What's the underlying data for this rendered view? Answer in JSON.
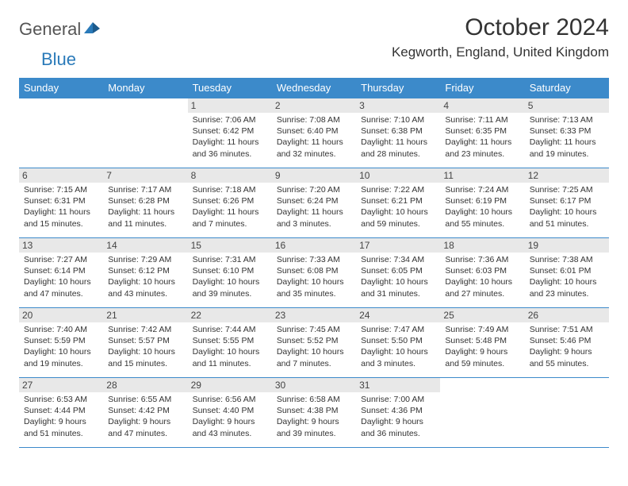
{
  "logo": {
    "text1": "General",
    "text2": "Blue"
  },
  "title": "October 2024",
  "location": "Kegworth, England, United Kingdom",
  "colors": {
    "header_bg": "#3c8aca",
    "header_text": "#ffffff",
    "daynum_bg": "#e8e8e8",
    "border": "#3c8aca",
    "logo_gray": "#555555",
    "logo_blue": "#2a7ab9"
  },
  "weekdays": [
    "Sunday",
    "Monday",
    "Tuesday",
    "Wednesday",
    "Thursday",
    "Friday",
    "Saturday"
  ],
  "weeks": [
    [
      null,
      null,
      {
        "n": "1",
        "sr": "7:06 AM",
        "ss": "6:42 PM",
        "dl": "11 hours and 36 minutes."
      },
      {
        "n": "2",
        "sr": "7:08 AM",
        "ss": "6:40 PM",
        "dl": "11 hours and 32 minutes."
      },
      {
        "n": "3",
        "sr": "7:10 AM",
        "ss": "6:38 PM",
        "dl": "11 hours and 28 minutes."
      },
      {
        "n": "4",
        "sr": "7:11 AM",
        "ss": "6:35 PM",
        "dl": "11 hours and 23 minutes."
      },
      {
        "n": "5",
        "sr": "7:13 AM",
        "ss": "6:33 PM",
        "dl": "11 hours and 19 minutes."
      }
    ],
    [
      {
        "n": "6",
        "sr": "7:15 AM",
        "ss": "6:31 PM",
        "dl": "11 hours and 15 minutes."
      },
      {
        "n": "7",
        "sr": "7:17 AM",
        "ss": "6:28 PM",
        "dl": "11 hours and 11 minutes."
      },
      {
        "n": "8",
        "sr": "7:18 AM",
        "ss": "6:26 PM",
        "dl": "11 hours and 7 minutes."
      },
      {
        "n": "9",
        "sr": "7:20 AM",
        "ss": "6:24 PM",
        "dl": "11 hours and 3 minutes."
      },
      {
        "n": "10",
        "sr": "7:22 AM",
        "ss": "6:21 PM",
        "dl": "10 hours and 59 minutes."
      },
      {
        "n": "11",
        "sr": "7:24 AM",
        "ss": "6:19 PM",
        "dl": "10 hours and 55 minutes."
      },
      {
        "n": "12",
        "sr": "7:25 AM",
        "ss": "6:17 PM",
        "dl": "10 hours and 51 minutes."
      }
    ],
    [
      {
        "n": "13",
        "sr": "7:27 AM",
        "ss": "6:14 PM",
        "dl": "10 hours and 47 minutes."
      },
      {
        "n": "14",
        "sr": "7:29 AM",
        "ss": "6:12 PM",
        "dl": "10 hours and 43 minutes."
      },
      {
        "n": "15",
        "sr": "7:31 AM",
        "ss": "6:10 PM",
        "dl": "10 hours and 39 minutes."
      },
      {
        "n": "16",
        "sr": "7:33 AM",
        "ss": "6:08 PM",
        "dl": "10 hours and 35 minutes."
      },
      {
        "n": "17",
        "sr": "7:34 AM",
        "ss": "6:05 PM",
        "dl": "10 hours and 31 minutes."
      },
      {
        "n": "18",
        "sr": "7:36 AM",
        "ss": "6:03 PM",
        "dl": "10 hours and 27 minutes."
      },
      {
        "n": "19",
        "sr": "7:38 AM",
        "ss": "6:01 PM",
        "dl": "10 hours and 23 minutes."
      }
    ],
    [
      {
        "n": "20",
        "sr": "7:40 AM",
        "ss": "5:59 PM",
        "dl": "10 hours and 19 minutes."
      },
      {
        "n": "21",
        "sr": "7:42 AM",
        "ss": "5:57 PM",
        "dl": "10 hours and 15 minutes."
      },
      {
        "n": "22",
        "sr": "7:44 AM",
        "ss": "5:55 PM",
        "dl": "10 hours and 11 minutes."
      },
      {
        "n": "23",
        "sr": "7:45 AM",
        "ss": "5:52 PM",
        "dl": "10 hours and 7 minutes."
      },
      {
        "n": "24",
        "sr": "7:47 AM",
        "ss": "5:50 PM",
        "dl": "10 hours and 3 minutes."
      },
      {
        "n": "25",
        "sr": "7:49 AM",
        "ss": "5:48 PM",
        "dl": "9 hours and 59 minutes."
      },
      {
        "n": "26",
        "sr": "7:51 AM",
        "ss": "5:46 PM",
        "dl": "9 hours and 55 minutes."
      }
    ],
    [
      {
        "n": "27",
        "sr": "6:53 AM",
        "ss": "4:44 PM",
        "dl": "9 hours and 51 minutes."
      },
      {
        "n": "28",
        "sr": "6:55 AM",
        "ss": "4:42 PM",
        "dl": "9 hours and 47 minutes."
      },
      {
        "n": "29",
        "sr": "6:56 AM",
        "ss": "4:40 PM",
        "dl": "9 hours and 43 minutes."
      },
      {
        "n": "30",
        "sr": "6:58 AM",
        "ss": "4:38 PM",
        "dl": "9 hours and 39 minutes."
      },
      {
        "n": "31",
        "sr": "7:00 AM",
        "ss": "4:36 PM",
        "dl": "9 hours and 36 minutes."
      },
      null,
      null
    ]
  ],
  "labels": {
    "sunrise": "Sunrise:",
    "sunset": "Sunset:",
    "daylight": "Daylight:"
  }
}
